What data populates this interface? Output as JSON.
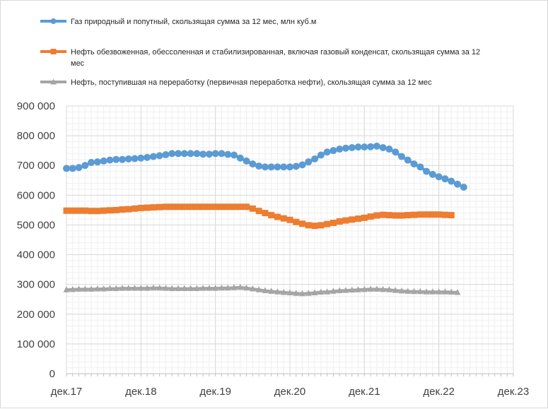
{
  "chart_data": {
    "type": "line",
    "title": "",
    "xlabel": "",
    "ylabel": "",
    "ylim": [
      0,
      900000
    ],
    "y_ticks": [
      "900 000",
      "800 000",
      "700 000",
      "600 000",
      "500 000",
      "400 000",
      "300 000",
      "200 000",
      "100 000",
      "0"
    ],
    "y_tick_values": [
      900000,
      800000,
      700000,
      600000,
      500000,
      400000,
      300000,
      200000,
      100000,
      0
    ],
    "x_ticks": [
      "дек.17",
      "дек.18",
      "дек.19",
      "дек.20",
      "дек.21",
      "дек.22",
      "дек.23"
    ],
    "x_range_months": [
      0,
      72
    ],
    "grid": true,
    "legend_position": "top",
    "series": [
      {
        "name": "Газ природный и попутный, скользящая сумма за 12 мес, млн куб.м",
        "color": "#5b9bd5",
        "marker": "circle",
        "values": [
          690000,
          690000,
          693000,
          700000,
          710000,
          712000,
          715000,
          718000,
          720000,
          720000,
          722000,
          723000,
          725000,
          727000,
          730000,
          733000,
          736000,
          740000,
          740000,
          740000,
          740000,
          740000,
          738000,
          738000,
          740000,
          740000,
          737000,
          735000,
          725000,
          715000,
          705000,
          698000,
          695000,
          695000,
          695000,
          695000,
          695000,
          697000,
          702000,
          712000,
          722000,
          735000,
          745000,
          750000,
          755000,
          758000,
          760000,
          762000,
          762000,
          763000,
          765000,
          760000,
          755000,
          745000,
          730000,
          718000,
          705000,
          695000,
          680000,
          670000,
          662000,
          655000,
          647000,
          637000,
          627000
        ]
      },
      {
        "name": "Нефть обезвоженная, обессоленная и стабилизированная, включая газовый конденсат, скользящая сумма за 12 мес",
        "color": "#ed7d31",
        "marker": "square",
        "values": [
          548000,
          548000,
          548000,
          548000,
          547000,
          547000,
          548000,
          549000,
          550000,
          552000,
          553000,
          555000,
          557000,
          558000,
          559000,
          560000,
          561000,
          561000,
          561000,
          561000,
          561000,
          561000,
          561000,
          561000,
          561000,
          561000,
          561000,
          561000,
          561000,
          561000,
          555000,
          547000,
          540000,
          533000,
          527000,
          522000,
          517000,
          510000,
          504000,
          499000,
          497000,
          499000,
          503000,
          507000,
          512000,
          515000,
          518000,
          521000,
          524000,
          528000,
          532000,
          534000,
          533000,
          532000,
          532000,
          533000,
          534000,
          535000,
          535000,
          535000,
          535000,
          534000,
          533000
        ]
      },
      {
        "name": "Нефть, поступившая на переработку (первичная переработка нефти), скользящая сумма за 12 мес",
        "color": "#a5a5a5",
        "marker": "triangle",
        "values": [
          282000,
          283000,
          284000,
          284000,
          284000,
          285000,
          285000,
          286000,
          286000,
          287000,
          287000,
          287000,
          287000,
          287000,
          288000,
          288000,
          287000,
          286000,
          286000,
          286000,
          286000,
          286000,
          287000,
          287000,
          287000,
          288000,
          288000,
          289000,
          290000,
          288000,
          285000,
          282000,
          279000,
          277000,
          275000,
          273000,
          272000,
          270000,
          269000,
          270000,
          272000,
          274000,
          275000,
          277000,
          279000,
          280000,
          281000,
          282000,
          283000,
          284000,
          284000,
          283000,
          282000,
          280000,
          278000,
          277000,
          276000,
          276000,
          275000,
          275000,
          275000,
          275000,
          274000,
          273000
        ]
      }
    ]
  }
}
